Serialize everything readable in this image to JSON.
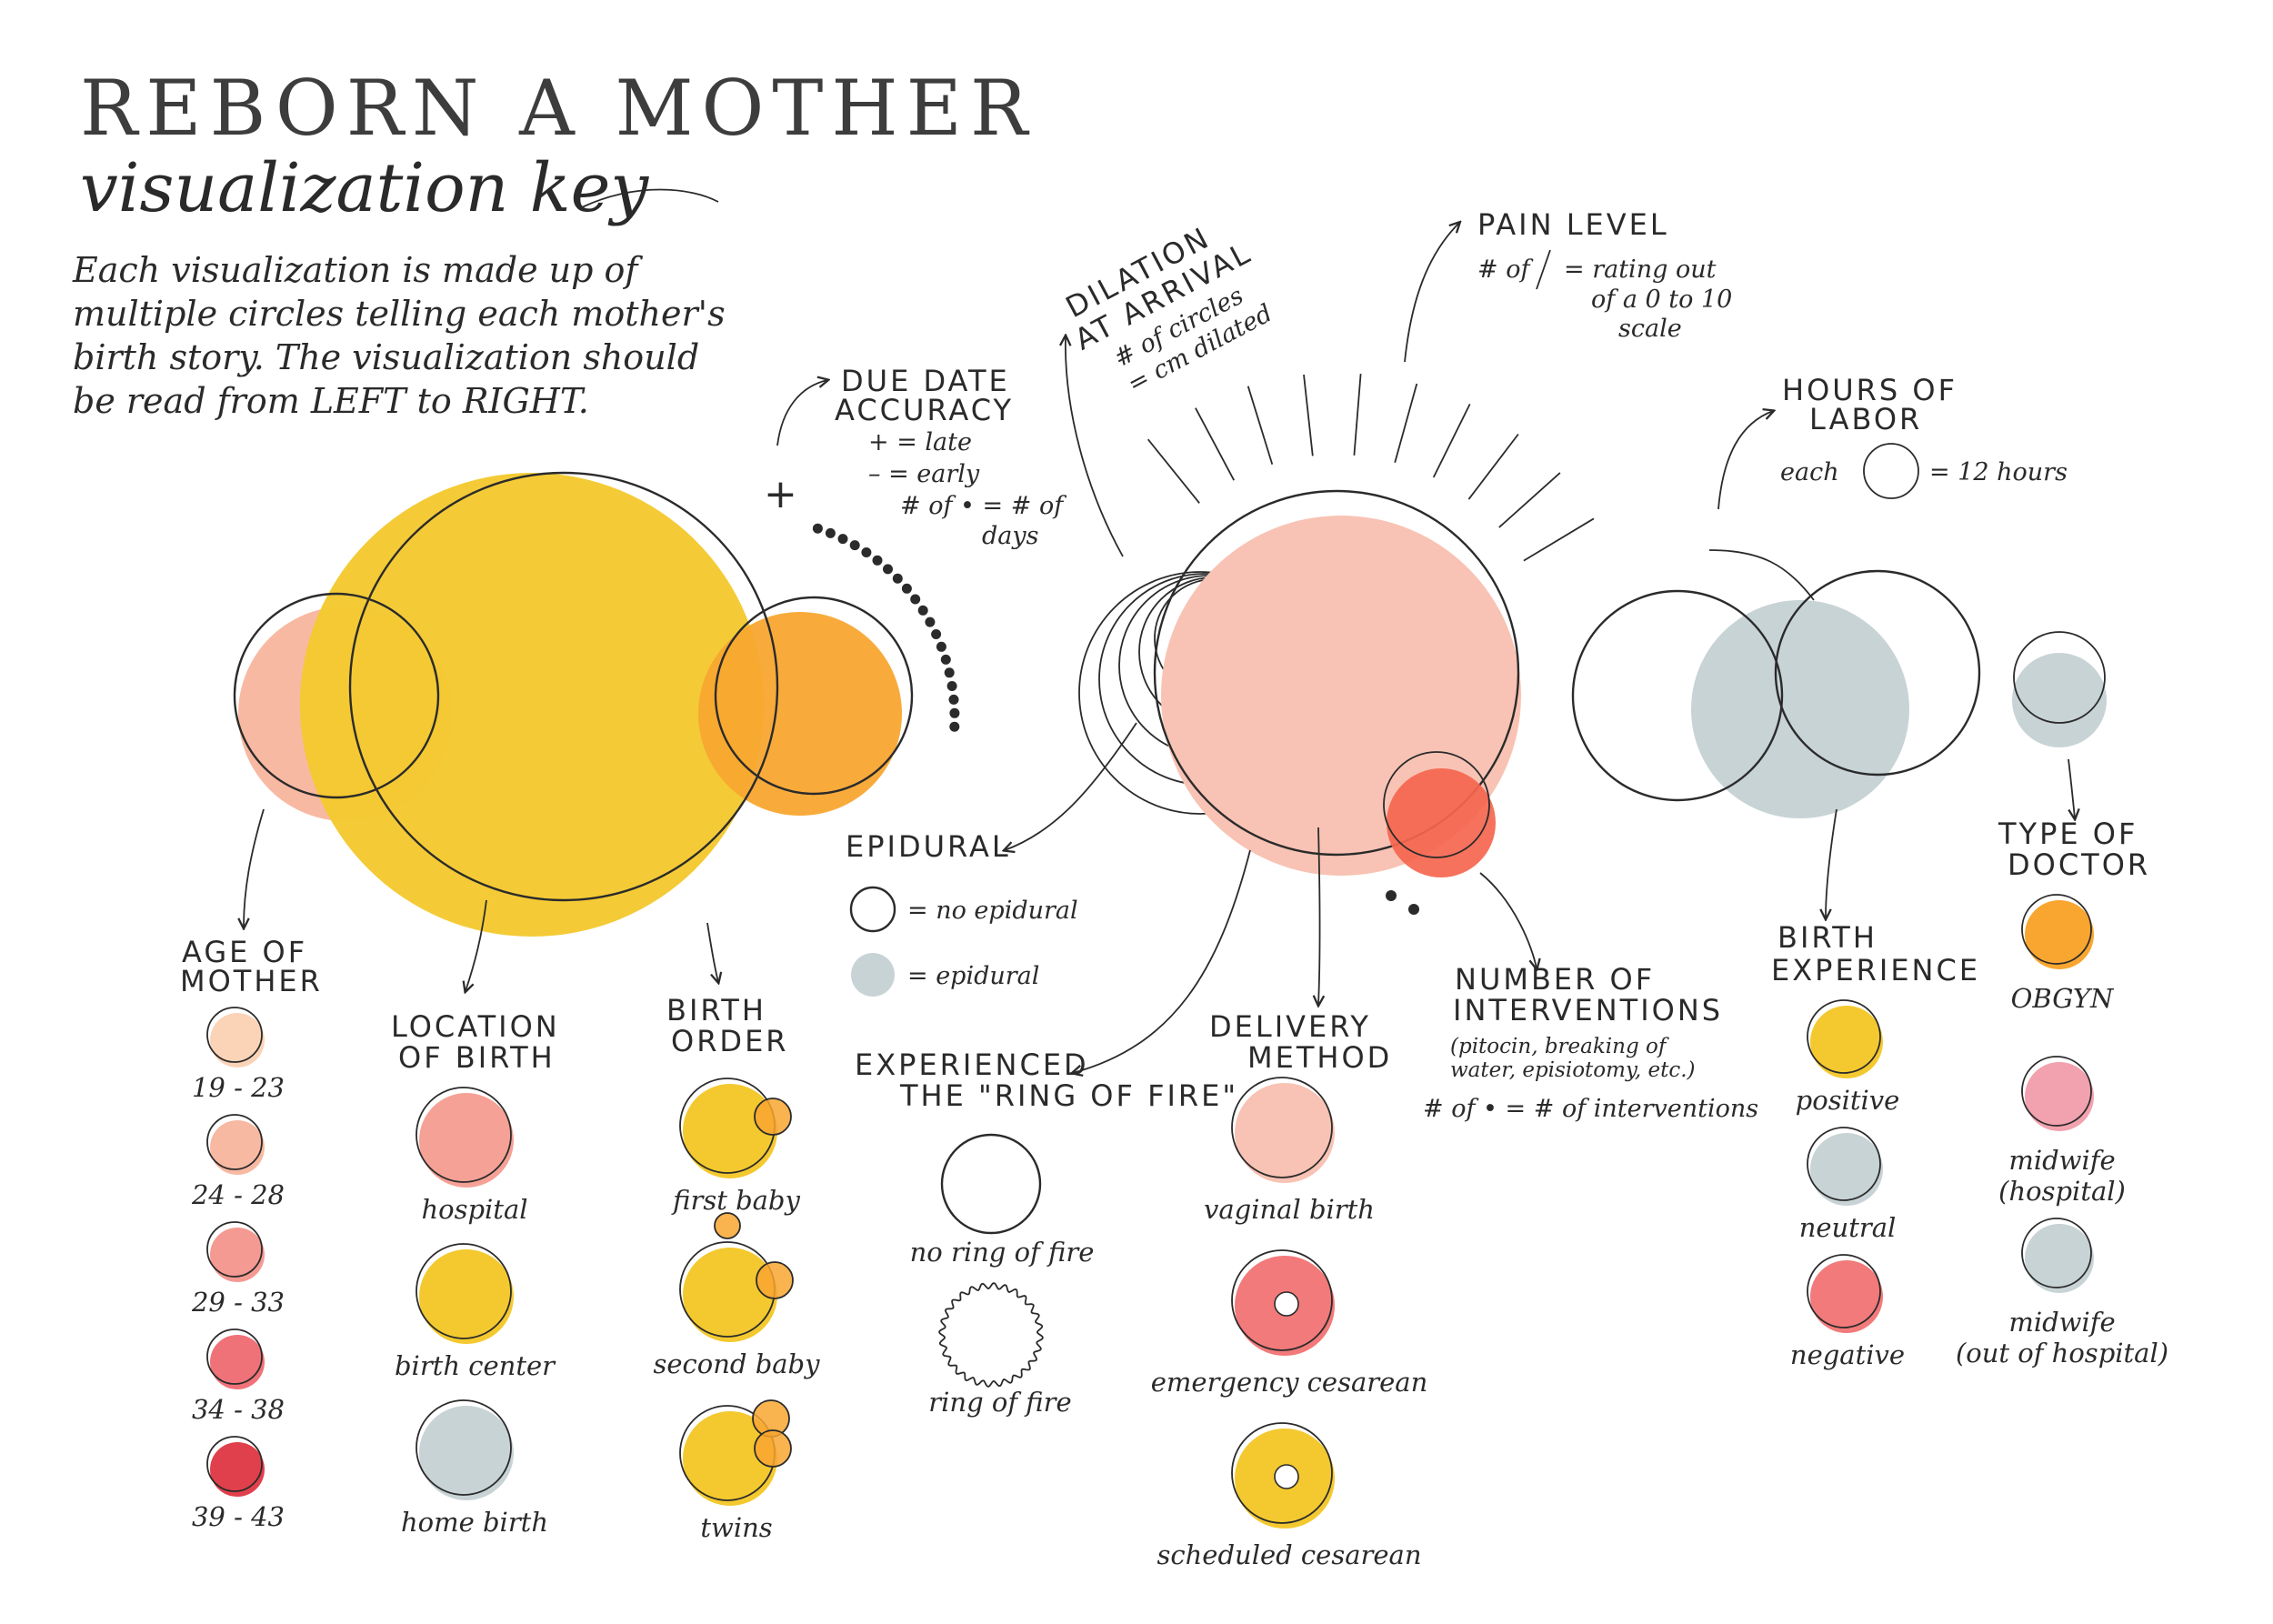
{
  "header": {
    "title": "REBORN A MOTHER",
    "subtitle": "visualization key",
    "intro_lines": [
      "Each visualization is made up of",
      "multiple circles telling each mother's",
      "birth story. The visualization should",
      "be read from LEFT to RIGHT."
    ]
  },
  "colors": {
    "yellow": "#F4C92F",
    "orange": "#F89A18",
    "peach": "#F8C3AD",
    "salmon": "#F5A196",
    "coral": "#F27A7A",
    "red": "#E8464F",
    "gray": "#C8D3D6",
    "pink": "#F1A2AE"
  },
  "annotations": {
    "due_date": {
      "title_lines": [
        "DUE DATE",
        "ACCURACY"
      ],
      "lines": [
        "+ = late",
        "– = early",
        "# of • = # of",
        "days"
      ],
      "plus_mark": "+"
    },
    "dilation": {
      "title_lines": [
        "DILATION",
        "AT ARRIVAL"
      ],
      "lines": [
        "# of circles",
        "= cm dilated"
      ]
    },
    "pain": {
      "title": "PAIN LEVEL",
      "prefix": "# of",
      "lines": [
        "= rating out",
        "of a 0 to 10",
        "scale"
      ]
    },
    "hours": {
      "title_lines": [
        "HOURS OF",
        "LABOR"
      ],
      "each": "each",
      "equals": "= 12 hours"
    },
    "epidural": {
      "title": "EPIDURAL",
      "no_epidural": "= no epidural",
      "epidural": "= epidural"
    },
    "ring_of_fire": {
      "title_lines": [
        "EXPERIENCED",
        "THE \"RING OF FIRE\""
      ],
      "no_ring": "no ring of fire",
      "ring": "ring of fire"
    },
    "interventions": {
      "title_lines": [
        "NUMBER OF",
        "INTERVENTIONS"
      ],
      "detail_lines": [
        "(pitocin, breaking of",
        "water, episiotomy, etc.)"
      ],
      "legend": "# of • = # of interventions"
    }
  },
  "legends": {
    "age": {
      "title_lines": [
        "AGE OF",
        "MOTHER"
      ],
      "items": [
        {
          "label": "19 - 23",
          "color": "#FBD4B8"
        },
        {
          "label": "24 - 28",
          "color": "#F8B9A2"
        },
        {
          "label": "29 - 33",
          "color": "#F49A92"
        },
        {
          "label": "34 - 38",
          "color": "#EF7278"
        },
        {
          "label": "39 - 43",
          "color": "#E0404C"
        }
      ]
    },
    "location": {
      "title_lines": [
        "LOCATION",
        "OF BIRTH"
      ],
      "items": [
        {
          "label": "hospital",
          "color": "#F5A196"
        },
        {
          "label": "birth center",
          "color": "#F4C92F"
        },
        {
          "label": "home birth",
          "color": "#C8D3D6"
        }
      ]
    },
    "birth_order": {
      "title_lines": [
        "BIRTH",
        "ORDER"
      ],
      "items": [
        {
          "label": "first baby"
        },
        {
          "label": "second baby"
        },
        {
          "label": "twins"
        }
      ]
    },
    "delivery": {
      "title_lines": [
        "DELIVERY",
        "METHOD"
      ],
      "items": [
        {
          "label": "vaginal birth",
          "color": "#F8C3B4"
        },
        {
          "label": "emergency cesarean",
          "color": "#F27A7A"
        },
        {
          "label": "scheduled cesarean",
          "color": "#F4C92F"
        }
      ]
    },
    "experience": {
      "title_lines": [
        "BIRTH",
        "EXPERIENCE"
      ],
      "items": [
        {
          "label": "positive",
          "color": "#F4C92F"
        },
        {
          "label": "neutral",
          "color": "#C8D3D6"
        },
        {
          "label": "negative",
          "color": "#F27A7A"
        }
      ]
    },
    "doctor": {
      "title_lines": [
        "TYPE OF",
        "DOCTOR"
      ],
      "items": [
        {
          "label_lines": [
            "OBGYN"
          ],
          "color": "#F8A630"
        },
        {
          "label_lines": [
            "midwife",
            "(hospital)"
          ],
          "color": "#F1A2AE"
        },
        {
          "label_lines": [
            "midwife",
            "(out of hospital)"
          ],
          "color": "#C8D3D6"
        }
      ]
    }
  }
}
